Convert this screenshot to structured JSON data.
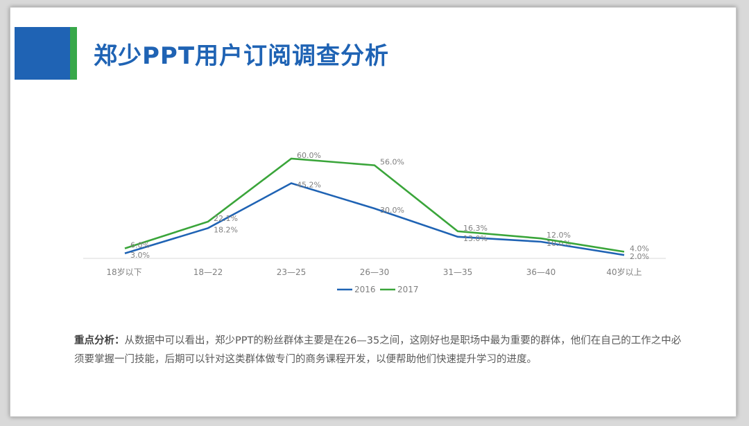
{
  "title": "郑少PPT用户订阅调查分析",
  "colors": {
    "accent_blue": "#1f63b4",
    "accent_green": "#38a84a",
    "series_2016": "#1f63b4",
    "series_2017": "#3aa53a"
  },
  "chart_data": {
    "type": "line",
    "categories": [
      "18岁以下",
      "18—22",
      "23—25",
      "26—30",
      "31—35",
      "36—40",
      "40岁以上"
    ],
    "series": [
      {
        "name": "2016",
        "values": [
          3.0,
          18.2,
          45.2,
          30.0,
          13.0,
          10.0,
          2.0
        ],
        "labels": [
          "3.0%",
          "18.2%",
          "45.2%",
          "30.0%",
          "13.0%",
          "10.0%",
          "2.0%"
        ]
      },
      {
        "name": "2017",
        "values": [
          6.0,
          22.1,
          60.0,
          56.0,
          16.3,
          12.0,
          4.0
        ],
        "labels": [
          "6.0%",
          "22.1%",
          "60.0%",
          "56.0%",
          "16.3%",
          "12.0%",
          "4.0%"
        ]
      }
    ],
    "ylim": [
      0,
      65
    ],
    "grid": false,
    "legend": "bottom",
    "title": "",
    "xlabel": "",
    "ylabel": ""
  },
  "analysis": {
    "label": "重点分析：",
    "text": "从数据中可以看出，郑少PPT的粉丝群体主要是在26—35之间，这刚好也是职场中最为重要的群体，他们在自己的工作之中必须要掌握一门技能，后期可以针对这类群体做专门的商务课程开发，以便帮助他们快速提升学习的进度。"
  }
}
